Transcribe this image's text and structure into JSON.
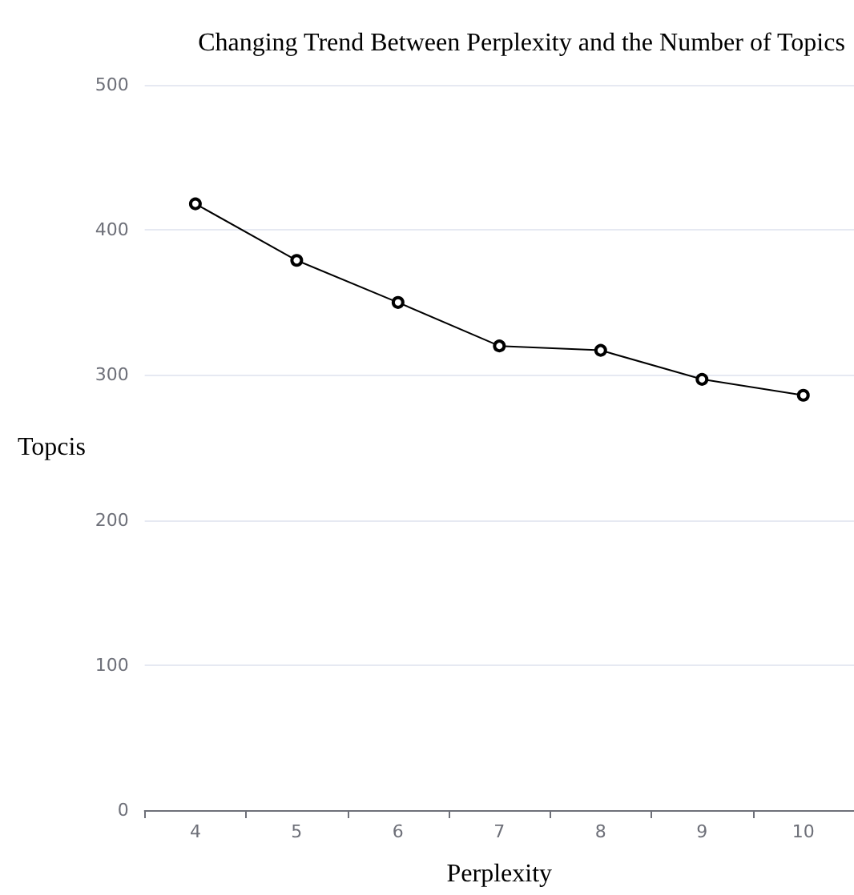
{
  "chart_data": {
    "type": "line",
    "title": "Changing Trend Between Perplexity and the Number of Topics",
    "xlabel": "Perplexity",
    "ylabel": "Topcis",
    "categories": [
      "4",
      "5",
      "6",
      "7",
      "8",
      "9",
      "10"
    ],
    "series": [
      {
        "color": "#000000",
        "values": [
          418,
          379,
          350,
          320,
          317,
          297,
          286
        ]
      }
    ],
    "ylim": [
      0,
      500
    ],
    "yticks": [
      0,
      100,
      200,
      300,
      400,
      500
    ],
    "grid": "y",
    "marker": "circle",
    "line_style": "solid"
  }
}
